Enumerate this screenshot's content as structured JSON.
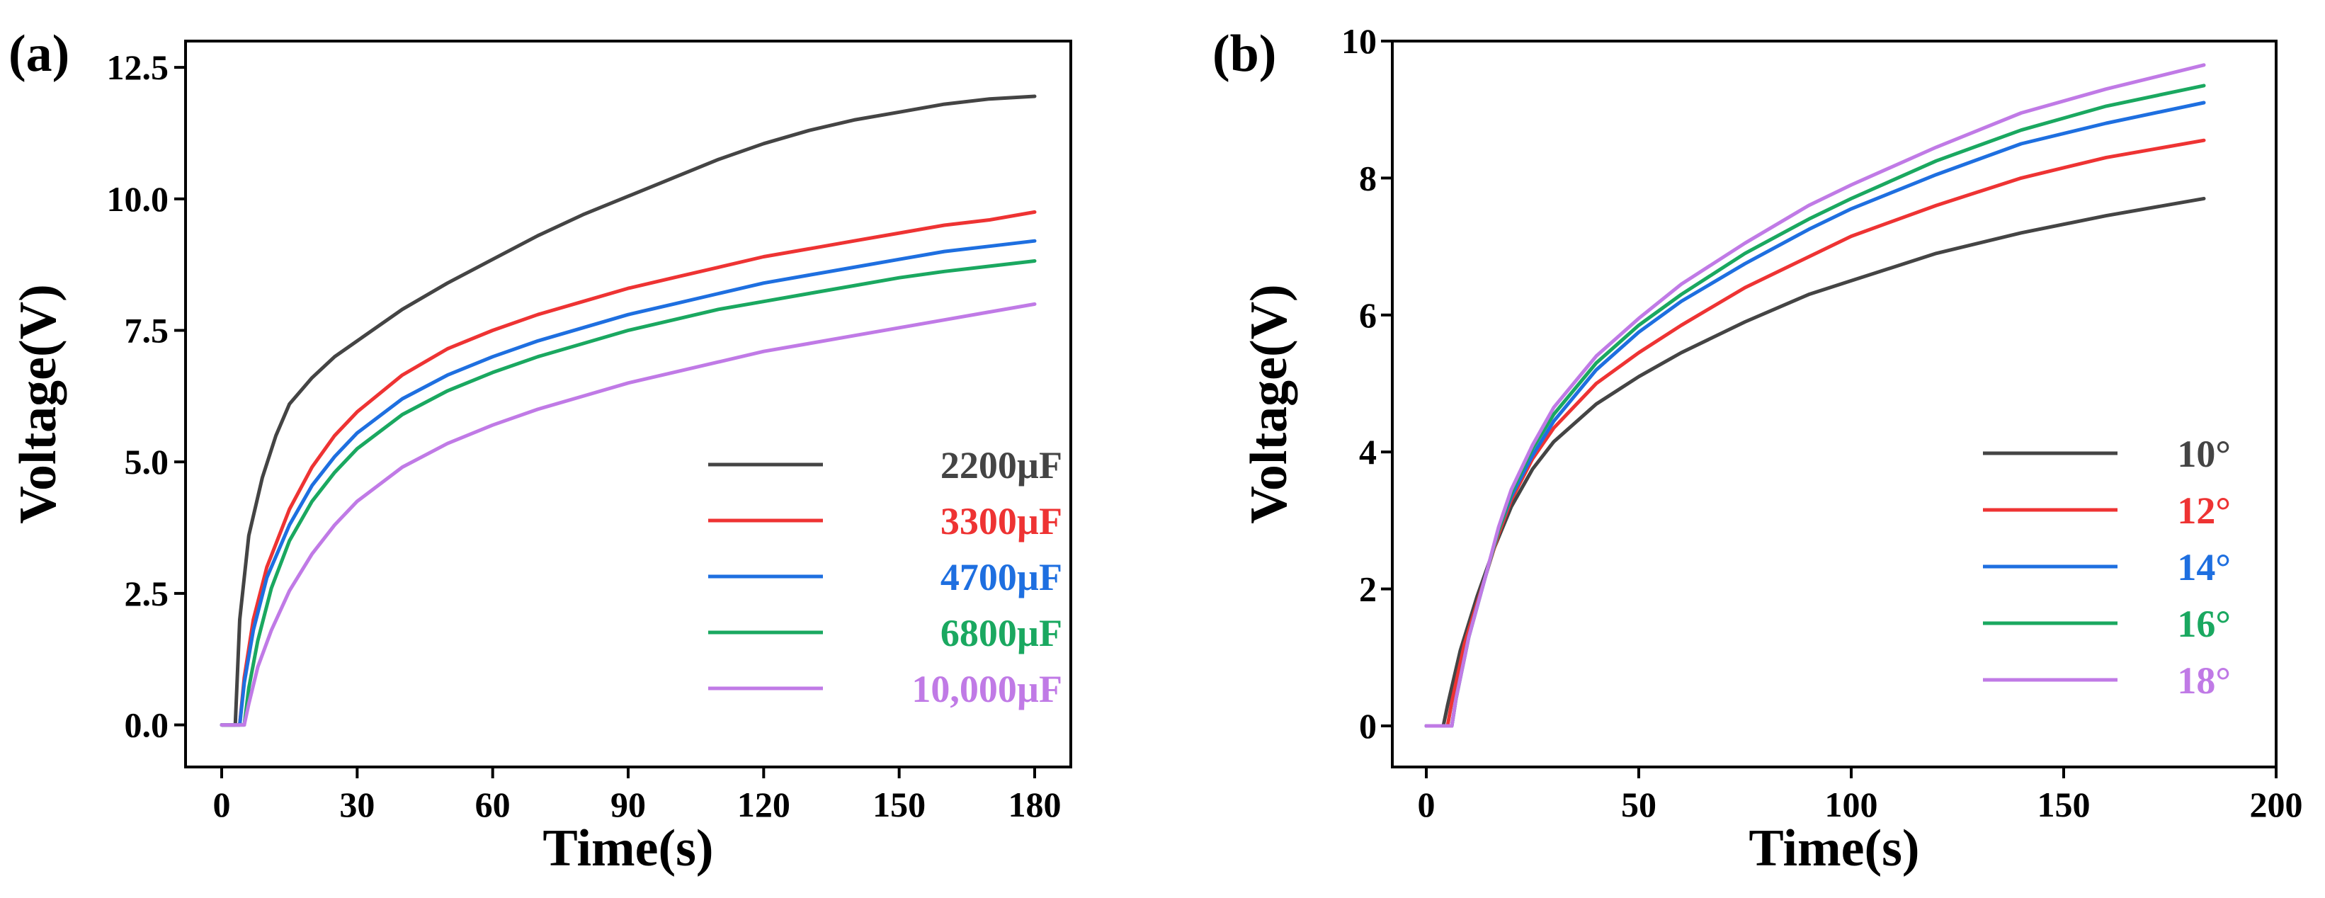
{
  "chart_data": [
    {
      "type": "line",
      "panel_label": "(a)",
      "title": "",
      "xlabel": "Time(s)",
      "ylabel": "Voltage(V)",
      "xlim": [
        -8,
        188
      ],
      "ylim": [
        -0.8,
        13.0
      ],
      "xticks": [
        0,
        30,
        60,
        90,
        120,
        150,
        180
      ],
      "xtick_labels": [
        "0",
        "30",
        "60",
        "90",
        "120",
        "150",
        "180"
      ],
      "yticks": [
        0.0,
        2.5,
        5.0,
        7.5,
        10.0,
        12.5
      ],
      "ytick_labels": [
        "0.0",
        "2.5",
        "5.0",
        "7.5",
        "10.0",
        "12.5"
      ],
      "grid": false,
      "legend_position": "bottom-right",
      "series": [
        {
          "name": "2200µF",
          "color": "#444444",
          "x": [
            0,
            3,
            4,
            6,
            9,
            12,
            15,
            20,
            25,
            30,
            40,
            50,
            60,
            70,
            80,
            90,
            100,
            110,
            120,
            130,
            140,
            150,
            160,
            170,
            180
          ],
          "y": [
            0,
            0,
            2.0,
            3.6,
            4.7,
            5.5,
            6.1,
            6.6,
            7.0,
            7.3,
            7.9,
            8.4,
            8.85,
            9.3,
            9.7,
            10.05,
            10.4,
            10.75,
            11.05,
            11.3,
            11.5,
            11.65,
            11.8,
            11.9,
            11.95
          ]
        },
        {
          "name": "3300µF",
          "color": "#ee3333",
          "x": [
            0,
            4,
            5,
            7,
            10,
            15,
            20,
            25,
            30,
            40,
            50,
            60,
            70,
            80,
            90,
            100,
            110,
            120,
            130,
            140,
            150,
            160,
            170,
            180
          ],
          "y": [
            0,
            0,
            0.9,
            2.0,
            3.0,
            4.1,
            4.9,
            5.5,
            5.95,
            6.65,
            7.15,
            7.5,
            7.8,
            8.05,
            8.3,
            8.5,
            8.7,
            8.9,
            9.05,
            9.2,
            9.35,
            9.5,
            9.6,
            9.75
          ]
        },
        {
          "name": "4700µF",
          "color": "#1e6fe0",
          "x": [
            0,
            4,
            5,
            7,
            10,
            15,
            20,
            25,
            30,
            40,
            50,
            60,
            70,
            80,
            90,
            100,
            110,
            120,
            130,
            140,
            150,
            160,
            170,
            180
          ],
          "y": [
            0,
            0,
            0.8,
            1.8,
            2.8,
            3.8,
            4.55,
            5.1,
            5.55,
            6.2,
            6.65,
            7.0,
            7.3,
            7.55,
            7.8,
            8.0,
            8.2,
            8.4,
            8.55,
            8.7,
            8.85,
            9.0,
            9.1,
            9.2
          ]
        },
        {
          "name": "6800µF",
          "color": "#1aa860",
          "x": [
            0,
            5,
            6,
            8,
            11,
            15,
            20,
            25,
            30,
            40,
            50,
            60,
            70,
            80,
            90,
            100,
            110,
            120,
            130,
            140,
            150,
            160,
            170,
            180
          ],
          "y": [
            0,
            0,
            0.7,
            1.6,
            2.6,
            3.5,
            4.25,
            4.8,
            5.25,
            5.9,
            6.35,
            6.7,
            7.0,
            7.25,
            7.5,
            7.7,
            7.9,
            8.05,
            8.2,
            8.35,
            8.5,
            8.62,
            8.72,
            8.82
          ]
        },
        {
          "name": "10,000µF",
          "color": "#c07ae6",
          "x": [
            0,
            5,
            6,
            8,
            11,
            15,
            20,
            25,
            30,
            40,
            50,
            60,
            70,
            80,
            90,
            100,
            110,
            120,
            130,
            140,
            150,
            160,
            170,
            180
          ],
          "y": [
            0,
            0,
            0.4,
            1.1,
            1.8,
            2.55,
            3.25,
            3.8,
            4.25,
            4.9,
            5.35,
            5.7,
            6.0,
            6.25,
            6.5,
            6.7,
            6.9,
            7.1,
            7.25,
            7.4,
            7.55,
            7.7,
            7.85,
            8.0
          ]
        }
      ]
    },
    {
      "type": "line",
      "panel_label": "(b)",
      "title": "",
      "xlabel": "Time(s)",
      "ylabel": "Voltage(V)",
      "xlim": [
        -8,
        200
      ],
      "ylim": [
        -0.6,
        10.0
      ],
      "xticks": [
        0,
        50,
        100,
        150,
        200
      ],
      "xtick_labels": [
        "0",
        "50",
        "100",
        "150",
        "200"
      ],
      "yticks": [
        0,
        2,
        4,
        6,
        8,
        10
      ],
      "ytick_labels": [
        "0",
        "2",
        "4",
        "6",
        "8",
        "10"
      ],
      "grid": false,
      "legend_position": "bottom-right",
      "series": [
        {
          "name": "10°",
          "color": "#444444",
          "x": [
            0,
            4,
            5,
            8,
            12,
            16,
            20,
            25,
            30,
            40,
            50,
            60,
            75,
            90,
            100,
            120,
            140,
            160,
            183
          ],
          "y": [
            0,
            0,
            0.3,
            1.1,
            1.9,
            2.6,
            3.2,
            3.75,
            4.15,
            4.7,
            5.1,
            5.45,
            5.9,
            6.3,
            6.5,
            6.9,
            7.2,
            7.45,
            7.7
          ]
        },
        {
          "name": "12°",
          "color": "#ee3333",
          "x": [
            0,
            5,
            6,
            9,
            13,
            17,
            20,
            25,
            30,
            40,
            50,
            60,
            75,
            90,
            100,
            120,
            140,
            160,
            183
          ],
          "y": [
            0,
            0,
            0.35,
            1.2,
            2.0,
            2.8,
            3.3,
            3.9,
            4.35,
            5.0,
            5.45,
            5.85,
            6.4,
            6.85,
            7.15,
            7.6,
            8.0,
            8.3,
            8.55
          ]
        },
        {
          "name": "14°",
          "color": "#1e6fe0",
          "x": [
            0,
            6,
            7,
            10,
            14,
            17,
            20,
            25,
            30,
            40,
            50,
            60,
            75,
            90,
            100,
            120,
            140,
            160,
            183
          ],
          "y": [
            0,
            0,
            0.4,
            1.3,
            2.2,
            2.85,
            3.35,
            3.95,
            4.45,
            5.2,
            5.75,
            6.2,
            6.75,
            7.25,
            7.55,
            8.05,
            8.5,
            8.8,
            9.1
          ]
        },
        {
          "name": "16°",
          "color": "#1aa860",
          "x": [
            0,
            6,
            7,
            10,
            14,
            17,
            20,
            25,
            30,
            40,
            50,
            60,
            75,
            90,
            100,
            120,
            140,
            160,
            183
          ],
          "y": [
            0,
            0,
            0.4,
            1.3,
            2.2,
            2.85,
            3.4,
            4.05,
            4.55,
            5.3,
            5.85,
            6.3,
            6.9,
            7.4,
            7.7,
            8.25,
            8.7,
            9.05,
            9.35
          ]
        },
        {
          "name": "18°",
          "color": "#c07ae6",
          "x": [
            0,
            6,
            7,
            10,
            14,
            17,
            20,
            25,
            30,
            40,
            50,
            60,
            75,
            90,
            100,
            120,
            140,
            160,
            183
          ],
          "y": [
            0,
            0,
            0.4,
            1.3,
            2.2,
            2.9,
            3.45,
            4.1,
            4.65,
            5.4,
            5.95,
            6.45,
            7.05,
            7.6,
            7.9,
            8.45,
            8.95,
            9.3,
            9.65
          ]
        }
      ]
    }
  ]
}
